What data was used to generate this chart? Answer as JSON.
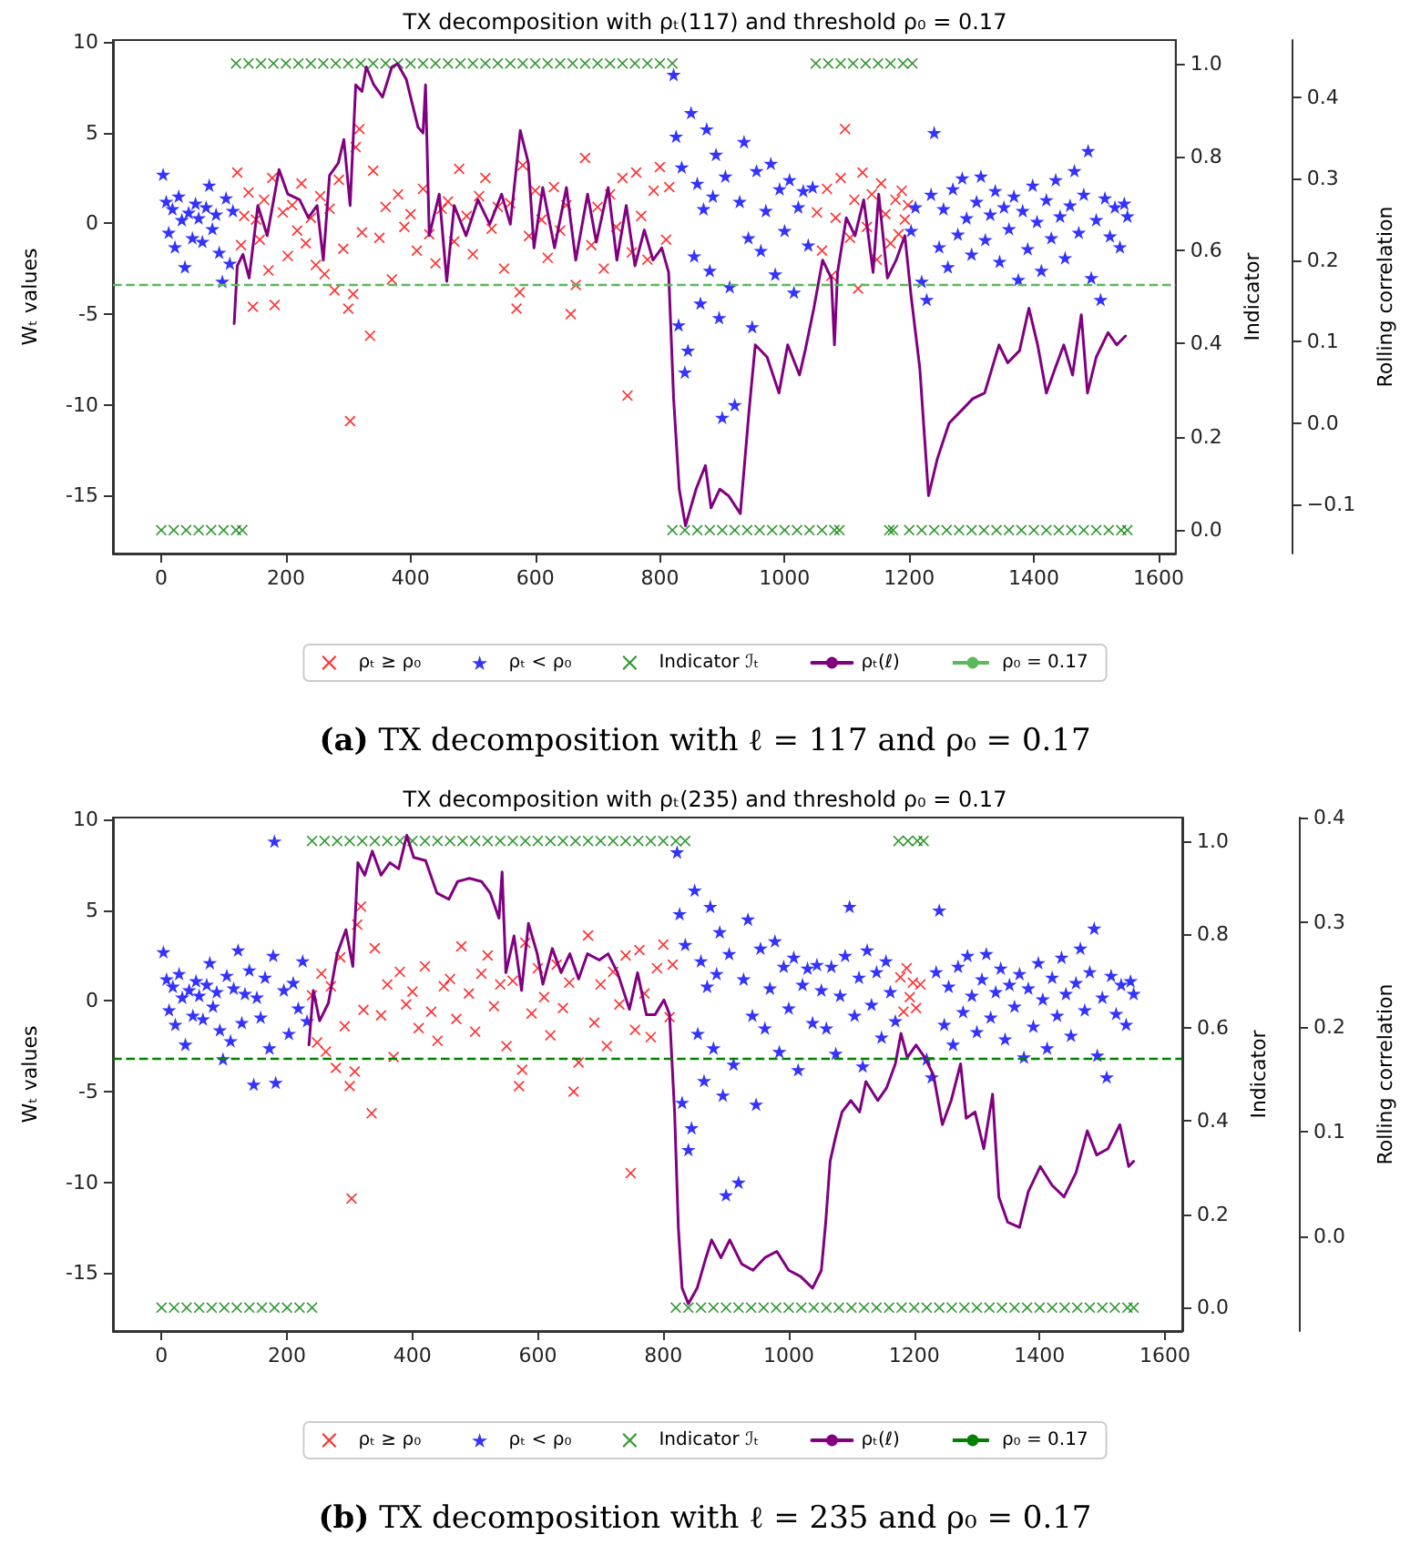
{
  "chart_data": [
    {
      "type": "scatter",
      "title": "TX decomposition with ρₜ(117) and threshold ρ₀ = 0.17",
      "ylabel": "Wₜ values",
      "y2label": "Indicator",
      "y3label": "Rolling correlation",
      "xlim": [
        -77.5,
        1627.5
      ],
      "xticks": [
        0,
        200,
        400,
        600,
        800,
        1000,
        1200,
        1400,
        1600
      ],
      "ylim": [
        -18.2,
        10.1
      ],
      "yticks": [
        -15,
        -10,
        -5,
        0,
        5,
        10
      ],
      "y2lim": [
        -0.05,
        1.05
      ],
      "y2ticks": [
        {
          "value": 0,
          "label": "0.0"
        },
        {
          "value": 0.2,
          "label": "0.2"
        },
        {
          "value": 0.4,
          "label": "0.4"
        },
        {
          "value": 0.6,
          "label": "0.6"
        },
        {
          "value": 0.8,
          "label": "0.8"
        },
        {
          "value": 1,
          "label": "1.0"
        }
      ],
      "y3lim": [
        -0.16,
        0.47
      ],
      "y3ticks": [
        {
          "value": -0.1,
          "label": "−0.1"
        },
        {
          "value": 0,
          "label": "0.0"
        },
        {
          "value": 0.1,
          "label": "0.1"
        },
        {
          "value": 0.2,
          "label": "0.2"
        },
        {
          "value": 0.3,
          "label": "0.3"
        },
        {
          "value": 0.4,
          "label": "0.4"
        }
      ],
      "legend": "bottom",
      "series": [
        {
          "name": "ρₜ ≥ ρ₀",
          "marker": "cross",
          "color": "#ff0000",
          "x": [
            122,
            128,
            133,
            140,
            147,
            152,
            158,
            165,
            172,
            178,
            182,
            195,
            203,
            210,
            218,
            225,
            232,
            240,
            248,
            255,
            262,
            270,
            278,
            285,
            292,
            300,
            303,
            308,
            312,
            318,
            322,
            335,
            340,
            350,
            360,
            370,
            380,
            390,
            400,
            410,
            420,
            430,
            440,
            450,
            460,
            470,
            478,
            490,
            500,
            510,
            520,
            530,
            540,
            550,
            560,
            570,
            575,
            580,
            590,
            600,
            610,
            620,
            630,
            640,
            650,
            657,
            665,
            680,
            690,
            700,
            710,
            720,
            730,
            740,
            748,
            755,
            762,
            770,
            780,
            790,
            800,
            810,
            815,
            1052,
            1060,
            1068,
            1075,
            1082,
            1090,
            1097,
            1105,
            1112,
            1118,
            1125,
            1132,
            1140,
            1148,
            1155,
            1162,
            1170,
            1178,
            1183,
            1188,
            1193,
            1198
          ],
          "values": [
            2.8,
            -1.2,
            0.4,
            1.7,
            -4.6,
            0.2,
            -0.9,
            1.3,
            -2.6,
            2.5,
            -4.5,
            0.6,
            -1.8,
            1.0,
            -0.4,
            2.2,
            -1.1,
            0.3,
            -2.3,
            1.5,
            -2.8,
            0.8,
            -3.7,
            2.4,
            -1.4,
            -4.7,
            -10.9,
            -3.9,
            4.2,
            5.2,
            -0.5,
            -6.2,
            2.9,
            -0.8,
            0.9,
            -3.1,
            1.6,
            -0.2,
            0.5,
            -1.5,
            1.9,
            -0.6,
            -2.2,
            0.8,
            1.2,
            -1.0,
            3.0,
            0.4,
            -1.7,
            1.5,
            2.5,
            -0.3,
            0.9,
            -2.5,
            1.1,
            -4.7,
            -3.8,
            3.2,
            -0.7,
            1.8,
            0.2,
            -1.9,
            2.0,
            -0.4,
            1.0,
            -5.0,
            -3.4,
            3.6,
            -1.2,
            0.9,
            -2.5,
            1.6,
            -0.2,
            2.5,
            -9.5,
            -1.6,
            2.8,
            0.4,
            -2.0,
            1.8,
            3.1,
            -0.9,
            2.0,
            0.6,
            -1.5,
            1.9,
            -2.9,
            0.3,
            2.5,
            5.2,
            -0.8,
            1.3,
            -3.6,
            2.8,
            -0.2,
            1.6,
            -2.0,
            2.2,
            0.5,
            -1.1,
            1.3,
            -0.6,
            1.8,
            0.2,
            1.0
          ]
        },
        {
          "name": "ρₜ < ρ₀",
          "marker": "star",
          "color": "#0000ff",
          "x": [
            3,
            8,
            12,
            18,
            22,
            28,
            33,
            38,
            44,
            50,
            55,
            60,
            66,
            72,
            77,
            82,
            88,
            93,
            98,
            104,
            110,
            115,
            822,
            826,
            830,
            835,
            840,
            845,
            850,
            855,
            860,
            865,
            870,
            875,
            880,
            885,
            890,
            895,
            900,
            905,
            912,
            920,
            928,
            935,
            942,
            948,
            955,
            962,
            970,
            978,
            985,
            992,
            1000,
            1008,
            1015,
            1022,
            1030,
            1038,
            1045,
            1203,
            1210,
            1220,
            1228,
            1235,
            1240,
            1248,
            1255,
            1262,
            1270,
            1278,
            1285,
            1292,
            1300,
            1308,
            1315,
            1322,
            1330,
            1338,
            1345,
            1352,
            1360,
            1368,
            1375,
            1382,
            1390,
            1398,
            1405,
            1412,
            1420,
            1428,
            1435,
            1442,
            1450,
            1458,
            1465,
            1472,
            1480,
            1487,
            1492,
            1500,
            1507,
            1514,
            1522,
            1530,
            1538,
            1545,
            1550
          ],
          "values": [
            2.7,
            1.2,
            -0.5,
            0.8,
            -1.3,
            1.5,
            0.2,
            -2.4,
            0.6,
            -0.8,
            1.1,
            0.3,
            -1.0,
            0.9,
            2.1,
            -0.3,
            0.5,
            -1.6,
            -3.2,
            1.4,
            -2.2,
            0.7,
            8.2,
            4.8,
            -5.6,
            3.1,
            -8.2,
            -7.0,
            6.1,
            -1.8,
            2.2,
            -4.4,
            0.8,
            5.2,
            -2.6,
            1.5,
            3.8,
            -5.2,
            -10.7,
            2.6,
            -3.5,
            -10.0,
            1.2,
            4.5,
            -0.8,
            -5.7,
            2.9,
            -1.5,
            0.7,
            3.3,
            -2.8,
            1.9,
            -0.4,
            2.4,
            -3.8,
            0.9,
            1.8,
            -1.2,
            2.0,
            -0.4,
            0.9,
            -3.2,
            -4.2,
            1.6,
            5.0,
            -1.3,
            0.8,
            -2.4,
            1.9,
            -0.6,
            2.5,
            0.3,
            -1.7,
            1.2,
            2.6,
            -0.9,
            0.5,
            1.8,
            -2.1,
            0.9,
            -0.3,
            1.5,
            -3.1,
            0.7,
            -1.4,
            2.1,
            0.1,
            -2.6,
            1.3,
            -0.8,
            2.4,
            0.4,
            -1.9,
            1.0,
            2.9,
            -0.5,
            1.6,
            4.0,
            -3.0,
            0.2,
            -4.2,
            1.4,
            -0.7,
            0.9,
            -1.3,
            1.1,
            0.4
          ]
        },
        {
          "name": "Indicator ℐₜ",
          "marker": "cross",
          "color": "#008000",
          "axis": "y2",
          "x": [
            0,
            20,
            40,
            60,
            80,
            100,
            120,
            130,
            120,
            140,
            160,
            180,
            200,
            220,
            240,
            260,
            280,
            300,
            320,
            340,
            360,
            380,
            400,
            420,
            440,
            460,
            480,
            500,
            520,
            540,
            560,
            580,
            600,
            620,
            640,
            660,
            680,
            700,
            720,
            740,
            760,
            780,
            800,
            820,
            820,
            840,
            860,
            880,
            900,
            920,
            940,
            960,
            980,
            1000,
            1020,
            1040,
            1060,
            1080,
            1088,
            1050,
            1070,
            1090,
            1110,
            1130,
            1150,
            1170,
            1190,
            1205,
            1168,
            1174,
            1200,
            1220,
            1240,
            1260,
            1280,
            1300,
            1320,
            1340,
            1360,
            1380,
            1400,
            1420,
            1440,
            1460,
            1480,
            1500,
            1520,
            1540,
            1550
          ],
          "values": [
            0,
            0,
            0,
            0,
            0,
            0,
            0,
            0,
            1,
            1,
            1,
            1,
            1,
            1,
            1,
            1,
            1,
            1,
            1,
            1,
            1,
            1,
            1,
            1,
            1,
            1,
            1,
            1,
            1,
            1,
            1,
            1,
            1,
            1,
            1,
            1,
            1,
            1,
            1,
            1,
            1,
            1,
            1,
            1,
            0,
            0,
            0,
            0,
            0,
            0,
            0,
            0,
            0,
            0,
            0,
            0,
            0,
            0,
            0,
            1,
            1,
            1,
            1,
            1,
            1,
            1,
            1,
            1,
            0,
            0,
            0,
            0,
            0,
            0,
            0,
            0,
            0,
            0,
            0,
            0,
            0,
            0,
            0,
            0,
            0,
            0,
            0,
            0,
            0
          ]
        },
        {
          "name": "ρₜ(ℓ)",
          "type": "line",
          "marker": "none",
          "color": "#800080",
          "axis": "y3",
          "x": [
            117,
            122,
            131,
            141,
            155,
            170,
            189,
            203,
            222,
            236,
            250,
            260,
            270,
            284,
            293,
            303,
            312,
            322,
            329,
            341,
            355,
            370,
            379,
            393,
            412,
            420,
            424,
            430,
            446,
            458,
            470,
            489,
            508,
            527,
            546,
            560,
            576,
            589,
            598,
            612,
            631,
            650,
            665,
            684,
            698,
            717,
            731,
            746,
            760,
            775,
            789,
            803,
            814,
            822,
            831,
            841,
            858,
            873,
            882,
            896,
            910,
            929,
            943,
            953,
            972,
            991,
            1005,
            1024,
            1033,
            1047,
            1061,
            1075,
            1080,
            1085,
            1099,
            1113,
            1127,
            1142,
            1151,
            1165,
            1179,
            1193,
            1203,
            1217,
            1231,
            1245,
            1264,
            1283,
            1302,
            1321,
            1344,
            1358,
            1377,
            1392,
            1406,
            1420,
            1434,
            1448,
            1462,
            1476,
            1486,
            1500,
            1519,
            1533,
            1547
          ],
          "values": [
            0.122,
            0.193,
            0.207,
            0.178,
            0.267,
            0.23,
            0.311,
            0.281,
            0.274,
            0.252,
            0.267,
            0.2,
            0.304,
            0.319,
            0.348,
            0.267,
            0.415,
            0.407,
            0.437,
            0.415,
            0.4,
            0.437,
            0.441,
            0.422,
            0.363,
            0.356,
            0.415,
            0.23,
            0.281,
            0.174,
            0.267,
            0.23,
            0.274,
            0.244,
            0.281,
            0.244,
            0.359,
            0.319,
            0.215,
            0.289,
            0.215,
            0.289,
            0.2,
            0.281,
            0.222,
            0.289,
            0.2,
            0.267,
            0.193,
            0.237,
            0.2,
            0.215,
            0.185,
            0.03,
            -0.081,
            -0.126,
            -0.081,
            -0.052,
            -0.104,
            -0.081,
            -0.089,
            -0.111,
            0.015,
            0.096,
            0.081,
            0.037,
            0.096,
            0.059,
            0.089,
            0.141,
            0.2,
            0.178,
            0.096,
            0.185,
            0.252,
            0.23,
            0.274,
            0.185,
            0.281,
            0.178,
            0.2,
            0.23,
            0.156,
            0.067,
            -0.089,
            -0.044,
            0.0,
            0.015,
            0.03,
            0.037,
            0.096,
            0.074,
            0.089,
            0.141,
            0.096,
            0.037,
            0.067,
            0.096,
            0.059,
            0.133,
            0.037,
            0.081,
            0.111,
            0.096,
            0.107
          ]
        }
      ],
      "ref_lines": [
        {
          "axis": "y3",
          "value": 0.17,
          "label": "ρ₀ = 0.17",
          "color": "#5cb85c",
          "line_style": "dashed"
        }
      ],
      "annotations": [
        "(a) TX decomposition with ℓ = 117 and ρ₀ = 0.17"
      ]
    },
    {
      "type": "scatter",
      "title": "TX decomposition with ρₜ(235) and threshold ρ₀ = 0.17",
      "ylabel": "Wₜ values",
      "y2label": "Indicator",
      "y3label": "Rolling correlation",
      "xlim": [
        -77.5,
        1627.5
      ],
      "xticks": [
        0,
        200,
        400,
        600,
        800,
        1000,
        1200,
        1400,
        1600
      ],
      "ylim": [
        -18.2,
        10.1
      ],
      "yticks": [
        -15,
        -10,
        -5,
        0,
        5,
        10
      ],
      "y2lim": [
        -0.05,
        1.05
      ],
      "y2ticks": [
        {
          "value": 0,
          "label": "0.0"
        },
        {
          "value": 0.2,
          "label": "0.2"
        },
        {
          "value": 0.4,
          "label": "0.4"
        },
        {
          "value": 0.6,
          "label": "0.6"
        },
        {
          "value": 0.8,
          "label": "0.8"
        },
        {
          "value": 1,
          "label": "1.0"
        }
      ],
      "y3lim": [
        -0.09,
        0.4
      ],
      "y3ticks": [
        {
          "value": 0,
          "label": "0.0"
        },
        {
          "value": 0.1,
          "label": "0.1"
        },
        {
          "value": 0.2,
          "label": "0.2"
        },
        {
          "value": 0.3,
          "label": "0.3"
        },
        {
          "value": 0.4,
          "label": "0.4"
        }
      ],
      "legend": "bottom",
      "series": [
        {
          "name": "ρₜ ≥ ρ₀",
          "marker": "cross",
          "color": "#ff0000",
          "x": [
            240,
            248,
            255,
            262,
            270,
            278,
            285,
            292,
            300,
            303,
            308,
            312,
            318,
            322,
            335,
            340,
            350,
            360,
            370,
            380,
            390,
            400,
            410,
            420,
            430,
            440,
            450,
            460,
            470,
            478,
            490,
            500,
            510,
            520,
            530,
            540,
            550,
            560,
            570,
            575,
            580,
            590,
            600,
            610,
            620,
            630,
            640,
            650,
            657,
            665,
            680,
            690,
            700,
            710,
            720,
            730,
            740,
            748,
            755,
            762,
            770,
            780,
            790,
            800,
            810,
            815,
            1178,
            1183,
            1188,
            1193,
            1198,
            1203,
            1210
          ],
          "values": [
            0.3,
            -2.3,
            1.5,
            -2.8,
            0.8,
            -3.7,
            2.4,
            -1.4,
            -4.7,
            -10.9,
            -3.9,
            4.2,
            5.2,
            -0.5,
            -6.2,
            2.9,
            -0.8,
            0.9,
            -3.1,
            1.6,
            -0.2,
            0.5,
            -1.5,
            1.9,
            -0.6,
            -2.2,
            0.8,
            1.2,
            -1.0,
            3.0,
            0.4,
            -1.7,
            1.5,
            2.5,
            -0.3,
            0.9,
            -2.5,
            1.1,
            -4.7,
            -3.8,
            3.2,
            -0.7,
            1.8,
            0.2,
            -1.9,
            2.0,
            -0.4,
            1.0,
            -5.0,
            -3.4,
            3.6,
            -1.2,
            0.9,
            -2.5,
            1.6,
            -0.2,
            2.5,
            -9.5,
            -1.6,
            2.8,
            0.4,
            -2.0,
            1.8,
            3.1,
            -0.9,
            2.0,
            1.3,
            -0.6,
            1.8,
            0.2,
            1.0,
            -0.4,
            0.9
          ]
        },
        {
          "name": "ρₜ < ρ₀",
          "marker": "star",
          "color": "#0000ff",
          "x": [
            3,
            8,
            12,
            18,
            22,
            28,
            33,
            38,
            44,
            50,
            55,
            60,
            66,
            72,
            77,
            82,
            88,
            93,
            98,
            104,
            110,
            115,
            122,
            128,
            133,
            140,
            147,
            152,
            158,
            165,
            172,
            178,
            180,
            182,
            195,
            203,
            210,
            218,
            225,
            232,
            822,
            826,
            830,
            835,
            840,
            845,
            850,
            855,
            860,
            865,
            870,
            875,
            880,
            885,
            890,
            895,
            900,
            905,
            912,
            920,
            928,
            935,
            942,
            948,
            955,
            962,
            970,
            978,
            985,
            992,
            1000,
            1008,
            1015,
            1022,
            1030,
            1038,
            1045,
            1052,
            1060,
            1068,
            1075,
            1082,
            1090,
            1097,
            1105,
            1112,
            1118,
            1125,
            1132,
            1140,
            1148,
            1155,
            1162,
            1170,
            1220,
            1228,
            1235,
            1240,
            1248,
            1255,
            1262,
            1270,
            1278,
            1285,
            1292,
            1300,
            1308,
            1315,
            1322,
            1330,
            1338,
            1345,
            1352,
            1360,
            1368,
            1375,
            1382,
            1390,
            1398,
            1405,
            1412,
            1420,
            1428,
            1435,
            1442,
            1450,
            1458,
            1465,
            1472,
            1480,
            1487,
            1492,
            1500,
            1507,
            1514,
            1522,
            1530,
            1538,
            1545,
            1550
          ],
          "values": [
            2.7,
            1.2,
            -0.5,
            0.8,
            -1.3,
            1.5,
            0.2,
            -2.4,
            0.6,
            -0.8,
            1.1,
            0.3,
            -1.0,
            0.9,
            2.1,
            -0.3,
            0.5,
            -1.6,
            -3.2,
            1.4,
            -2.2,
            0.7,
            2.8,
            -1.2,
            0.4,
            1.7,
            -4.6,
            0.2,
            -0.9,
            1.3,
            -2.6,
            2.5,
            8.8,
            -4.5,
            0.6,
            -1.8,
            1.0,
            -0.4,
            2.2,
            -1.1,
            8.2,
            4.8,
            -5.6,
            3.1,
            -8.2,
            -7.0,
            6.1,
            -1.8,
            2.2,
            -4.4,
            0.8,
            5.2,
            -2.6,
            1.5,
            3.8,
            -5.2,
            -10.7,
            2.6,
            -3.5,
            -10.0,
            1.2,
            4.5,
            -0.8,
            -5.7,
            2.9,
            -1.5,
            0.7,
            3.3,
            -2.8,
            1.9,
            -0.4,
            2.4,
            -3.8,
            0.9,
            1.8,
            -1.2,
            2.0,
            0.6,
            -1.5,
            1.9,
            -2.9,
            0.3,
            2.5,
            5.2,
            -0.8,
            1.3,
            -3.6,
            2.8,
            -0.2,
            1.6,
            -2.0,
            2.2,
            0.5,
            -1.1,
            -3.2,
            -4.2,
            1.6,
            5.0,
            -1.3,
            0.8,
            -2.4,
            1.9,
            -0.6,
            2.5,
            0.3,
            -1.7,
            1.2,
            2.6,
            -0.9,
            0.5,
            1.8,
            -2.1,
            0.9,
            -0.3,
            1.5,
            -3.1,
            0.7,
            -1.4,
            2.1,
            0.1,
            -2.6,
            1.3,
            -0.8,
            2.4,
            0.4,
            -1.9,
            1.0,
            2.9,
            -0.5,
            1.6,
            4.0,
            -3.0,
            0.2,
            -4.2,
            1.4,
            -0.7,
            0.9,
            -1.3,
            1.1,
            0.4
          ]
        },
        {
          "name": "Indicator ℐₜ",
          "marker": "cross",
          "color": "#008000",
          "axis": "y2",
          "x": [
            0,
            20,
            40,
            60,
            80,
            100,
            120,
            140,
            160,
            180,
            200,
            220,
            240,
            240,
            260,
            280,
            300,
            320,
            340,
            360,
            380,
            400,
            420,
            440,
            460,
            480,
            500,
            520,
            540,
            560,
            580,
            600,
            620,
            640,
            660,
            680,
            700,
            720,
            740,
            760,
            780,
            800,
            820,
            835,
            820,
            840,
            860,
            880,
            900,
            920,
            940,
            960,
            980,
            1000,
            1020,
            1040,
            1060,
            1080,
            1100,
            1120,
            1140,
            1160,
            1180,
            1200,
            1220,
            1240,
            1260,
            1280,
            1300,
            1320,
            1340,
            1360,
            1380,
            1400,
            1420,
            1440,
            1460,
            1480,
            1500,
            1520,
            1540,
            1550,
            1175,
            1190,
            1205,
            1215
          ],
          "values": [
            0,
            0,
            0,
            0,
            0,
            0,
            0,
            0,
            0,
            0,
            0,
            0,
            0,
            1,
            1,
            1,
            1,
            1,
            1,
            1,
            1,
            1,
            1,
            1,
            1,
            1,
            1,
            1,
            1,
            1,
            1,
            1,
            1,
            1,
            1,
            1,
            1,
            1,
            1,
            1,
            1,
            1,
            1,
            1,
            0,
            0,
            0,
            0,
            0,
            0,
            0,
            0,
            0,
            0,
            0,
            0,
            0,
            0,
            0,
            0,
            0,
            0,
            0,
            0,
            0,
            0,
            0,
            0,
            0,
            0,
            0,
            0,
            0,
            0,
            0,
            0,
            0,
            0,
            0,
            0,
            0,
            0,
            1,
            1,
            1,
            1
          ]
        },
        {
          "name": "ρₜ(ℓ)",
          "type": "line",
          "marker": "none",
          "color": "#800080",
          "axis": "y3",
          "x": [
            235,
            242,
            252,
            266,
            280,
            294,
            305,
            313,
            324,
            336,
            350,
            364,
            378,
            391,
            402,
            421,
            439,
            458,
            472,
            491,
            510,
            524,
            538,
            543,
            549,
            562,
            574,
            585,
            599,
            608,
            623,
            637,
            651,
            665,
            679,
            698,
            712,
            727,
            746,
            759,
            773,
            787,
            801,
            810,
            818,
            824,
            830,
            840,
            854,
            868,
            877,
            892,
            906,
            925,
            943,
            962,
            981,
            1000,
            1019,
            1038,
            1052,
            1059,
            1066,
            1075,
            1085,
            1099,
            1113,
            1123,
            1142,
            1156,
            1170,
            1179,
            1189,
            1203,
            1217,
            1231,
            1245,
            1259,
            1274,
            1283,
            1297,
            1311,
            1325,
            1335,
            1349,
            1368,
            1382,
            1401,
            1420,
            1439,
            1458,
            1476,
            1491,
            1509,
            1528,
            1542,
            1550
          ],
          "values": [
            0.183,
            0.235,
            0.206,
            0.223,
            0.27,
            0.293,
            0.258,
            0.357,
            0.345,
            0.368,
            0.345,
            0.357,
            0.351,
            0.383,
            0.362,
            0.359,
            0.328,
            0.322,
            0.339,
            0.342,
            0.339,
            0.328,
            0.304,
            0.348,
            0.252,
            0.287,
            0.235,
            0.299,
            0.27,
            0.241,
            0.275,
            0.252,
            0.27,
            0.246,
            0.27,
            0.264,
            0.27,
            0.252,
            0.217,
            0.252,
            0.212,
            0.212,
            0.226,
            0.212,
            0.119,
            0.009,
            -0.049,
            -0.064,
            -0.049,
            -0.02,
            -0.003,
            -0.02,
            -0.003,
            -0.026,
            -0.032,
            -0.02,
            -0.014,
            -0.032,
            -0.038,
            -0.049,
            -0.032,
            0.014,
            0.072,
            0.096,
            0.119,
            0.13,
            0.119,
            0.148,
            0.13,
            0.142,
            0.165,
            0.194,
            0.171,
            0.183,
            0.171,
            0.154,
            0.107,
            0.13,
            0.165,
            0.113,
            0.119,
            0.084,
            0.136,
            0.038,
            0.014,
            0.009,
            0.043,
            0.067,
            0.049,
            0.038,
            0.061,
            0.101,
            0.078,
            0.084,
            0.107,
            0.067,
            0.072
          ]
        }
      ],
      "ref_lines": [
        {
          "axis": "y3",
          "value": 0.17,
          "label": "ρ₀ = 0.17",
          "color": "#008000",
          "line_style": "dashed"
        }
      ],
      "annotations": [
        "(b) TX decomposition with ℓ = 235 and ρ₀ = 0.17"
      ]
    }
  ]
}
